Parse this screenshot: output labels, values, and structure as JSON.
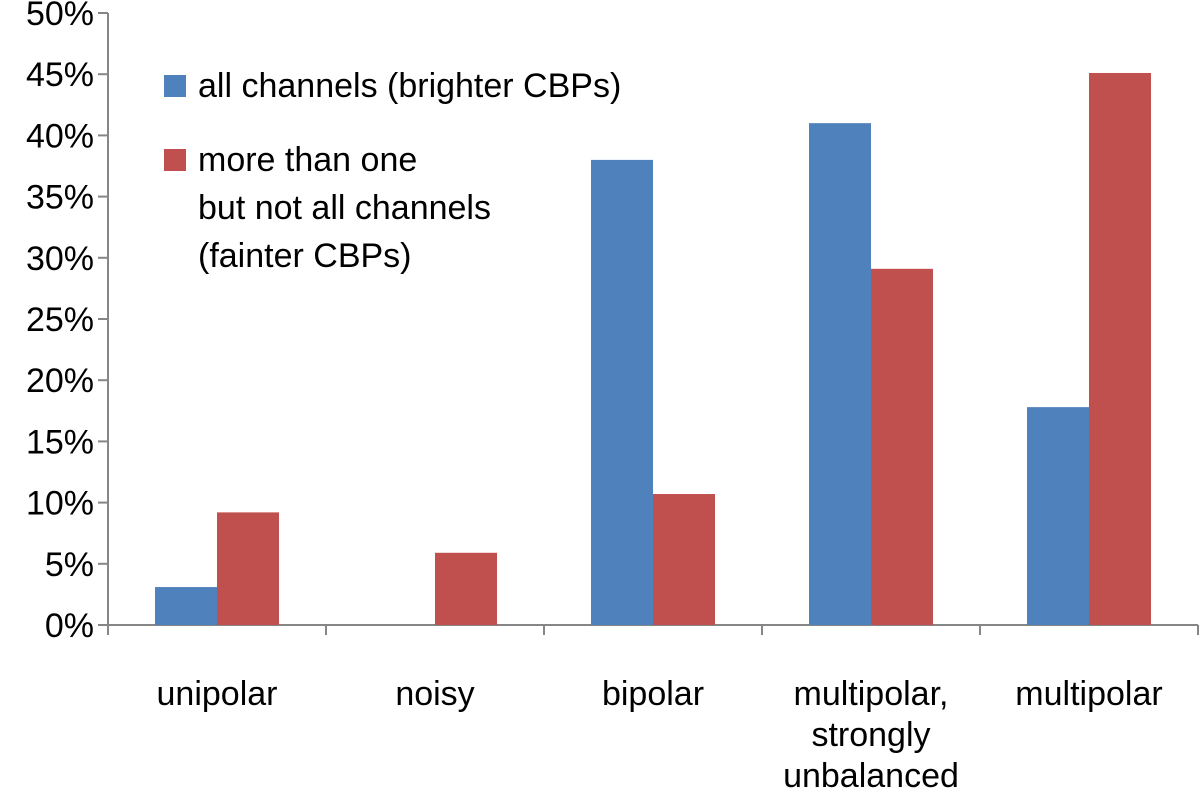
{
  "chart_data": {
    "type": "bar",
    "categories": [
      [
        "unipolar"
      ],
      [
        "noisy"
      ],
      [
        "bipolar"
      ],
      [
        "multipolar,",
        "strongly",
        "unbalanced"
      ],
      [
        "multipolar"
      ]
    ],
    "series": [
      {
        "name": [
          "all channels (brighter CBPs)"
        ],
        "color": "#4F81BD",
        "values": [
          3.1,
          0,
          38,
          41,
          17.8
        ]
      },
      {
        "name": [
          "more than one",
          "but not all channels",
          "(fainter CBPs)"
        ],
        "color": "#C0504D",
        "values": [
          9.2,
          5.9,
          10.7,
          29.1,
          45.1
        ]
      }
    ],
    "yaxis": {
      "ticks": [
        "0%",
        "5%",
        "10%",
        "15%",
        "20%",
        "25%",
        "30%",
        "35%",
        "40%",
        "45%",
        "50%"
      ],
      "ylim": [
        0,
        50
      ]
    },
    "grid": false,
    "legend": "top-left"
  }
}
